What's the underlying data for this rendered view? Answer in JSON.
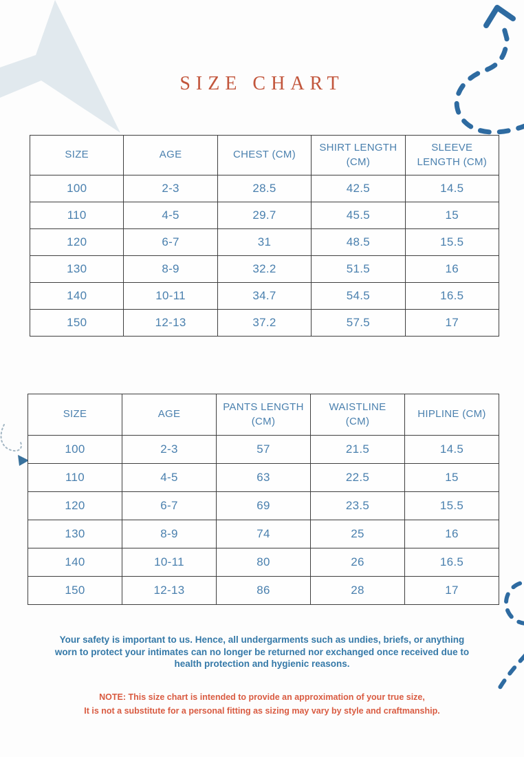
{
  "page": {
    "title": "SIZE CHART"
  },
  "tables": [
    {
      "name": "shirt-size-table",
      "columns": [
        "SIZE",
        "AGE",
        "CHEST (CM)",
        "SHIRT LENGTH (CM)",
        "SLEEVE LENGTH (CM)"
      ],
      "rows": [
        [
          "100",
          "2-3",
          "28.5",
          "42.5",
          "14.5"
        ],
        [
          "110",
          "4-5",
          "29.7",
          "45.5",
          "15"
        ],
        [
          "120",
          "6-7",
          "31",
          "48.5",
          "15.5"
        ],
        [
          "130",
          "8-9",
          "32.2",
          "51.5",
          "16"
        ],
        [
          "140",
          "10-11",
          "34.7",
          "54.5",
          "16.5"
        ],
        [
          "150",
          "12-13",
          "37.2",
          "57.5",
          "17"
        ]
      ]
    },
    {
      "name": "pants-size-table",
      "columns": [
        "SIZE",
        "AGE",
        "PANTS LENGTH (CM)",
        "WAISTLINE (CM)",
        "HIPLINE (CM)"
      ],
      "rows": [
        [
          "100",
          "2-3",
          "57",
          "21.5",
          "14.5"
        ],
        [
          "110",
          "4-5",
          "63",
          "22.5",
          "15"
        ],
        [
          "120",
          "6-7",
          "69",
          "23.5",
          "15.5"
        ],
        [
          "130",
          "8-9",
          "74",
          "25",
          "16"
        ],
        [
          "140",
          "10-11",
          "80",
          "26",
          "16.5"
        ],
        [
          "150",
          "12-13",
          "86",
          "28",
          "17"
        ]
      ]
    }
  ],
  "notes": {
    "safety": "Your safety is important to us. Hence, all undergarments such as undies, briefs, or anything\nworn to protect your intimates can no longer be returned nor exchanged once received due to\nhealth protection and hygienic reasons.",
    "disclaimer": "NOTE: This size chart is intended to provide an approximation of your true size,\nIt is not a substitute for a personal fitting as sizing may vary by style and craftmanship."
  },
  "colors": {
    "title_color": "#c2563c",
    "table_text_color": "#4a80ae",
    "border_color": "#3e3e3e",
    "safety_color": "#3579a8",
    "note_color": "#d95b41",
    "doodle_color": "#2e6ba1",
    "shape_color": "#e1e9ee",
    "hook_dot_color": "#a3b6c4"
  }
}
